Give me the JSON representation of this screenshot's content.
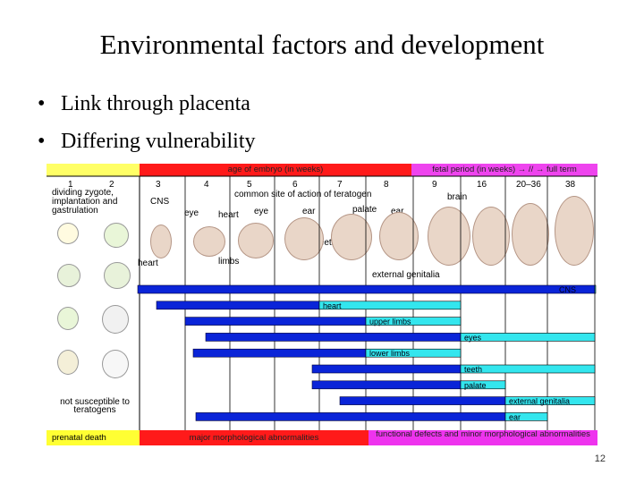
{
  "title": "Environmental factors and development",
  "bullets": [
    "Link through placenta",
    "Differing vulnerability"
  ],
  "page_number": "12",
  "figure": {
    "header": {
      "embryo": "age of embryo (in weeks)",
      "fetal": "fetal period (in weeks) → // → full term"
    },
    "weeks": [
      "1",
      "2",
      "3",
      "4",
      "5",
      "6",
      "7",
      "8",
      "9",
      "16",
      "20–36",
      "38"
    ],
    "early_label": "dividing zygote, implantation and gastrulation",
    "common_site": "common site of action of teratogen",
    "organ_labels": {
      "cns": "CNS",
      "eye1": "eye",
      "heart1": "heart",
      "eye2": "eye",
      "ear1": "ear",
      "palate": "palate",
      "ear2": "ear",
      "brain": "brain",
      "teeth": "teeth",
      "heart2": "heart",
      "limbs": "limbs",
      "genitalia": "external genitalia"
    },
    "not_susceptible": "not susceptible to teratogens",
    "bars": [
      {
        "label": "CNS",
        "blue": [
          1,
          12
        ],
        "cyan": [
          12,
          16
        ]
      },
      {
        "label": "heart",
        "blue": [
          2,
          5
        ],
        "cyan": [
          5,
          8
        ]
      },
      {
        "label": "upper limbs",
        "blue": [
          3,
          6
        ],
        "cyan": [
          6,
          8
        ]
      },
      {
        "label": "eyes",
        "blue": [
          4,
          8
        ],
        "cyan": [
          8,
          16
        ]
      },
      {
        "label": "lower limbs",
        "blue": [
          3,
          6
        ],
        "cyan": [
          6,
          8
        ]
      },
      {
        "label": "teeth",
        "blue": [
          6,
          8
        ],
        "cyan": [
          8,
          16
        ]
      },
      {
        "label": "palate",
        "blue": [
          6,
          8
        ],
        "cyan": [
          8,
          9
        ]
      },
      {
        "label": "external genitalia",
        "blue": [
          7,
          9
        ],
        "cyan": [
          9,
          16
        ]
      },
      {
        "label": "ear",
        "blue": [
          3,
          9
        ],
        "cyan": [
          9,
          10
        ]
      }
    ],
    "footer": {
      "prenatal": "prenatal death",
      "major": "major morphological abnormalities",
      "minor": "functional defects and minor morphological abnormalities"
    }
  }
}
